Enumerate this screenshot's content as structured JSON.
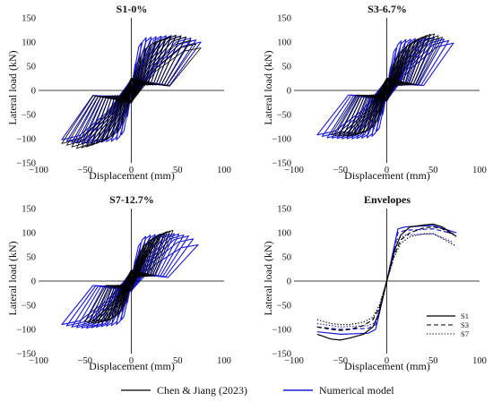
{
  "colors": {
    "experimental": "#000000",
    "numerical": "#1a1ad6"
  },
  "legend": {
    "experimental_label": "Chen & Jiang (2023)",
    "numerical_label": "Numerical model"
  },
  "chart_data": [
    {
      "title": "S1-0%",
      "type": "line",
      "xlabel": "Displacement (mm)",
      "ylabel": "Lateral load (kN)",
      "xlim": [
        -100,
        100
      ],
      "ylim": [
        -150,
        150
      ],
      "xticks": [
        -100,
        -50,
        0,
        50,
        100
      ],
      "yticks": [
        -150,
        -100,
        -50,
        0,
        50,
        100,
        150
      ],
      "series": [
        {
          "name": "Chen & Jiang (2023)",
          "role": "experimental",
          "envelope_x": [
            0,
            8,
            15,
            25,
            40,
            50,
            60,
            75
          ],
          "envelope_y": [
            0,
            60,
            85,
            100,
            110,
            115,
            110,
            88
          ],
          "envelope_nx": [
            0,
            -8,
            -15,
            -25,
            -40,
            -50,
            -60,
            -75
          ],
          "envelope_ny": [
            0,
            -60,
            -85,
            -100,
            -112,
            -118,
            -120,
            -110
          ]
        },
        {
          "name": "Numerical model",
          "role": "numerical",
          "envelope_x": [
            0,
            5,
            12,
            20,
            35,
            50,
            65,
            75
          ],
          "envelope_y": [
            0,
            55,
            108,
            110,
            113,
            114,
            108,
            100
          ],
          "envelope_nx": [
            0,
            -5,
            -12,
            -20,
            -35,
            -50,
            -65,
            -75
          ],
          "envelope_ny": [
            0,
            -55,
            -100,
            -105,
            -108,
            -110,
            -108,
            -102
          ]
        }
      ]
    },
    {
      "title": "S3-6.7%",
      "type": "line",
      "xlabel": "Displacement (mm)",
      "ylabel": "Lateral load (kN)",
      "xlim": [
        -100,
        100
      ],
      "ylim": [
        -150,
        150
      ],
      "xticks": [
        -100,
        -50,
        0,
        50,
        100
      ],
      "yticks": [
        -150,
        -100,
        -50,
        0,
        50,
        100,
        150
      ],
      "series": [
        {
          "name": "Chen & Jiang (2023)",
          "role": "experimental",
          "envelope_x": [
            0,
            8,
            15,
            25,
            40,
            50,
            60
          ],
          "envelope_y": [
            0,
            55,
            80,
            95,
            112,
            118,
            110
          ],
          "envelope_nx": [
            0,
            -8,
            -15,
            -25,
            -40,
            -50,
            -60
          ],
          "envelope_ny": [
            0,
            -50,
            -75,
            -88,
            -95,
            -95,
            -92
          ]
        },
        {
          "name": "Numerical model",
          "role": "numerical",
          "envelope_x": [
            0,
            5,
            12,
            20,
            35,
            50,
            65,
            72
          ],
          "envelope_y": [
            0,
            50,
            100,
            105,
            108,
            110,
            105,
            98
          ],
          "envelope_nx": [
            0,
            -5,
            -12,
            -20,
            -35,
            -50,
            -65,
            -75
          ],
          "envelope_ny": [
            0,
            -50,
            -92,
            -98,
            -100,
            -100,
            -98,
            -92
          ]
        }
      ]
    },
    {
      "title": "S7-12.7%",
      "type": "line",
      "xlabel": "Displacement (mm)",
      "ylabel": "Lateral load (kN)",
      "xlim": [
        -100,
        100
      ],
      "ylim": [
        -150,
        150
      ],
      "xticks": [
        -100,
        -50,
        0,
        50,
        100
      ],
      "yticks": [
        -150,
        -100,
        -50,
        0,
        50,
        100,
        150
      ],
      "series": [
        {
          "name": "Chen & Jiang (2023)",
          "role": "experimental",
          "envelope_x": [
            0,
            8,
            15,
            25,
            38,
            45
          ],
          "envelope_y": [
            0,
            50,
            75,
            90,
            102,
            105
          ],
          "envelope_nx": [
            0,
            -8,
            -15,
            -25,
            -40,
            -50
          ],
          "envelope_ny": [
            0,
            -48,
            -70,
            -82,
            -88,
            -85
          ]
        },
        {
          "name": "Numerical model",
          "role": "numerical",
          "envelope_x": [
            0,
            5,
            12,
            20,
            35,
            50,
            65,
            72
          ],
          "envelope_y": [
            0,
            45,
            90,
            95,
            98,
            98,
            92,
            75
          ],
          "envelope_nx": [
            0,
            -5,
            -12,
            -20,
            -35,
            -50,
            -65,
            -75
          ],
          "envelope_ny": [
            0,
            -45,
            -88,
            -92,
            -95,
            -98,
            -95,
            -90
          ]
        }
      ]
    },
    {
      "title": "Envelopes",
      "type": "line",
      "xlabel": "Displacement (mm)",
      "ylabel": "Lateral load (kN)",
      "xlim": [
        -100,
        100
      ],
      "ylim": [
        -150,
        150
      ],
      "xticks": [
        -100,
        -50,
        0,
        50,
        100
      ],
      "yticks": [
        -150,
        -100,
        -50,
        0,
        50,
        100,
        150
      ],
      "series": [
        {
          "name": "S1",
          "source": "Chen & Jiang (2023)",
          "dash": "solid",
          "x": [
            -75,
            -60,
            -50,
            -40,
            -25,
            -15,
            -8,
            0,
            8,
            15,
            25,
            40,
            50,
            60,
            75
          ],
          "y": [
            -110,
            -120,
            -122,
            -118,
            -110,
            -95,
            -65,
            0,
            62,
            95,
            112,
            116,
            118,
            112,
            92
          ]
        },
        {
          "name": "S3",
          "source": "Chen & Jiang (2023)",
          "dash": "dashed",
          "x": [
            -75,
            -60,
            -50,
            -40,
            -25,
            -15,
            -8,
            0,
            8,
            15,
            25,
            40,
            50,
            60,
            72
          ],
          "y": [
            -95,
            -100,
            -102,
            -100,
            -92,
            -80,
            -55,
            0,
            55,
            85,
            100,
            110,
            112,
            108,
            95
          ]
        },
        {
          "name": "S7",
          "source": "Chen & Jiang (2023)",
          "dash": "dotted",
          "x": [
            -75,
            -60,
            -50,
            -40,
            -25,
            -15,
            -8,
            0,
            8,
            15,
            25,
            40,
            50,
            60,
            75
          ],
          "y": [
            -80,
            -88,
            -90,
            -90,
            -85,
            -75,
            -50,
            0,
            50,
            78,
            92,
            98,
            98,
            88,
            72
          ]
        },
        {
          "name": "S1",
          "source": "Numerical model",
          "dash": "solid",
          "x": [
            -75,
            -50,
            -20,
            -12,
            0,
            12,
            20,
            50,
            75
          ],
          "y": [
            -105,
            -110,
            -108,
            -100,
            0,
            108,
            112,
            115,
            100
          ]
        },
        {
          "name": "S3",
          "source": "Numerical model",
          "dash": "dashed",
          "x": [
            -75,
            -50,
            -20,
            -12,
            0,
            12,
            20,
            50,
            72
          ],
          "y": [
            -95,
            -100,
            -98,
            -90,
            0,
            100,
            105,
            108,
            98
          ]
        },
        {
          "name": "S7",
          "source": "Numerical model",
          "dash": "dotted",
          "x": [
            -75,
            -50,
            -20,
            -12,
            0,
            12,
            20,
            50,
            72
          ],
          "y": [
            -88,
            -95,
            -92,
            -85,
            0,
            88,
            95,
            98,
            80
          ]
        }
      ],
      "legend_entries": [
        "S1",
        "S3",
        "S7"
      ],
      "legend_position": "bottom-right"
    }
  ]
}
